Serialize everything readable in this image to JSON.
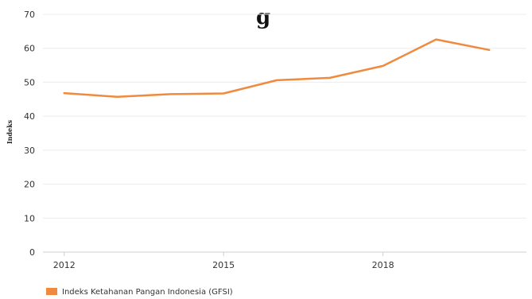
{
  "chart_data": {
    "type": "line",
    "title_fragment": "g",
    "ylabel": "Indeks",
    "xlabel": "",
    "ylim": [
      0,
      70
    ],
    "yticks": [
      0,
      10,
      20,
      30,
      40,
      50,
      60,
      70
    ],
    "xticks": [
      2012,
      2015,
      2018
    ],
    "xlim": [
      2011.6,
      2020.7
    ],
    "grid": true,
    "legend": "bottom-left",
    "series": [
      {
        "name": "Indeks Ketahanan Pangan Indonesia (GFSI)",
        "color": "#f08a3e",
        "x": [
          2012,
          2013,
          2014,
          2015,
          2016,
          2017,
          2018,
          2019,
          2020
        ],
        "y": [
          46.8,
          45.7,
          46.5,
          46.7,
          50.6,
          51.3,
          54.8,
          62.6,
          59.5
        ]
      }
    ]
  }
}
